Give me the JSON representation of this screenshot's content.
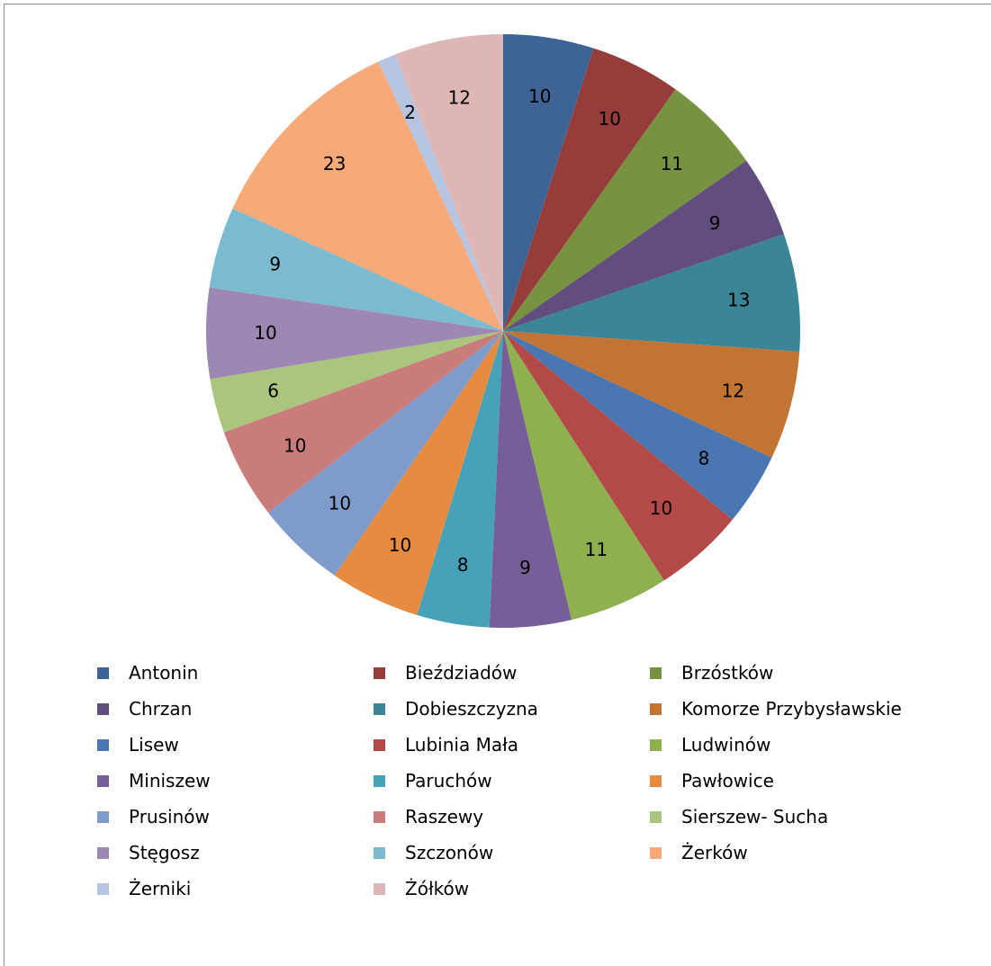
{
  "chart_data": {
    "type": "pie",
    "title": "",
    "start": "top",
    "direction": "clockwise",
    "legend_placement": "bottom",
    "slices": [
      {
        "label": "Antonin",
        "value": 10,
        "color": "#3e6496"
      },
      {
        "label": "Bieździadów",
        "value": 10,
        "color": "#963d3b"
      },
      {
        "label": "Brzóstków",
        "value": 11,
        "color": "#779342"
      },
      {
        "label": "Chrzan",
        "value": 9,
        "color": "#624d7f"
      },
      {
        "label": "Dobieszczyzna",
        "value": 13,
        "color": "#3a8597"
      },
      {
        "label": "Komorze Przybysławskie",
        "value": 12,
        "color": "#c27433"
      },
      {
        "label": "Lisew",
        "value": 8,
        "color": "#4a76b2"
      },
      {
        "label": "Lubinia Mała",
        "value": 10,
        "color": "#b34a47"
      },
      {
        "label": "Ludwinów",
        "value": 11,
        "color": "#8eb04f"
      },
      {
        "label": "Miniszew",
        "value": 9,
        "color": "#775e98"
      },
      {
        "label": "Paruchów",
        "value": 8,
        "color": "#46a2b9"
      },
      {
        "label": "Pawłowice",
        "value": 10,
        "color": "#e68b40"
      },
      {
        "label": "Prusinów",
        "value": 10,
        "color": "#7f9bc9"
      },
      {
        "label": "Raszewy",
        "value": 10,
        "color": "#ca7c7a"
      },
      {
        "label": "Sierszew- Sucha",
        "value": 6,
        "color": "#aac57d"
      },
      {
        "label": "Stęgosz",
        "value": 10,
        "color": "#9c88b3"
      },
      {
        "label": "Szczonów",
        "value": 9,
        "color": "#7cbbcf"
      },
      {
        "label": "Żerków",
        "value": 23,
        "color": "#f7aa79"
      },
      {
        "label": "Żerniki",
        "value": 2,
        "color": "#b5c5e1"
      },
      {
        "label": "Żółków",
        "value": 12,
        "color": "#deb6b5"
      }
    ]
  }
}
